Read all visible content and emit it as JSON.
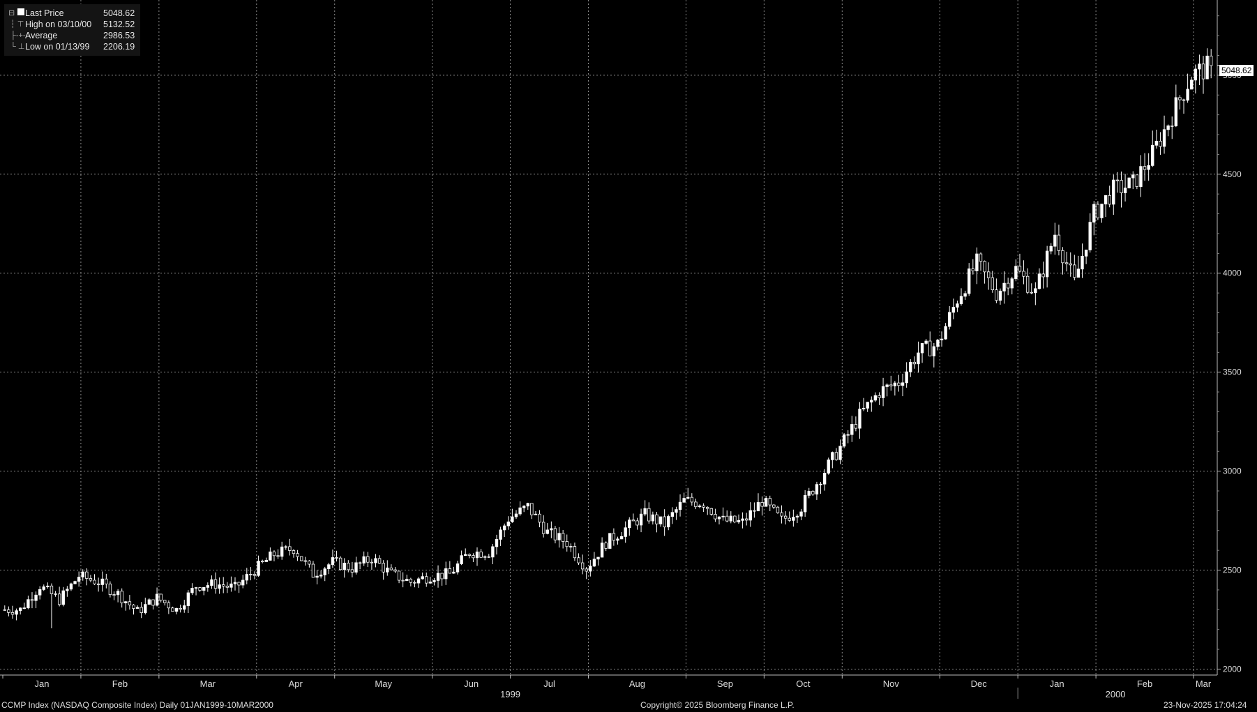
{
  "legend": {
    "last_price": {
      "label": "Last Price",
      "value": "5048.62"
    },
    "high": {
      "label": "High on 03/10/00",
      "value": "5132.52"
    },
    "average": {
      "label": "Average",
      "value": "2986.53"
    },
    "low": {
      "label": "Low on 01/13/99",
      "value": "2206.19"
    }
  },
  "last_value_tag": "5048.62",
  "footer": {
    "left": "CCMP Index (NASDAQ Composite Index) Daily 01JAN1999-10MAR2000",
    "center": "Copyright© 2025 Bloomberg Finance L.P.",
    "right": "23-Nov-2025 17:04:24"
  },
  "colors": {
    "background": "#000000",
    "candle": "#ffffff",
    "grid": "#8a8a8a"
  },
  "chart_data": {
    "type": "candlestick",
    "y_ticks": [
      2000,
      2500,
      3000,
      3500,
      4000,
      4500,
      5000
    ],
    "ylim": [
      1970,
      5380
    ],
    "x_ticks": [
      {
        "label": "Jan",
        "week": 0
      },
      {
        "label": "Feb",
        "week": 4
      },
      {
        "label": "Mar",
        "week": 8
      },
      {
        "label": "Apr",
        "week": 13
      },
      {
        "label": "May",
        "week": 17
      },
      {
        "label": "Jun",
        "week": 22
      },
      {
        "label": "Jul",
        "week": 26
      },
      {
        "label": "Aug",
        "week": 30
      },
      {
        "label": "Sep",
        "week": 35
      },
      {
        "label": "Oct",
        "week": 39
      },
      {
        "label": "Nov",
        "week": 43
      },
      {
        "label": "Dec",
        "week": 48
      },
      {
        "label": "Jan",
        "week": 52
      },
      {
        "label": "Feb",
        "week": 56
      },
      {
        "label": "Mar",
        "week": 61
      }
    ],
    "year_labels": [
      {
        "label": "1999",
        "week": 26
      },
      {
        "label": "2000",
        "week": 57
      }
    ],
    "year_separator_week": 52,
    "weeks": 62,
    "grid": true,
    "series": [
      {
        "name": "Last Price",
        "weekly_close": [
          2300,
          2420,
          2350,
          2470,
          2440,
          2380,
          2290,
          2360,
          2300,
          2420,
          2430,
          2410,
          2500,
          2580,
          2610,
          2480,
          2540,
          2510,
          2560,
          2480,
          2440,
          2470,
          2480,
          2590,
          2590,
          2760,
          2820,
          2690,
          2640,
          2510,
          2640,
          2710,
          2780,
          2730,
          2850,
          2840,
          2750,
          2740,
          2850,
          2750,
          2820,
          2970,
          3120,
          3280,
          3400,
          3450,
          3600,
          3640,
          3870,
          4050,
          3900,
          4020,
          3900,
          4200,
          3950,
          4300,
          4420,
          4450,
          4600,
          4800,
          5000,
          5048.62
        ],
        "low": 2206.19,
        "high": 5132.52,
        "average": 2986.53,
        "last": 5048.62
      }
    ]
  }
}
